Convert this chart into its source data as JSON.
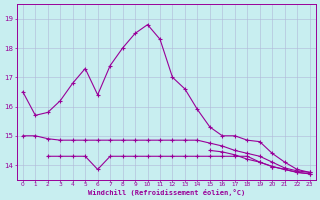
{
  "bg_color": "#c8eef0",
  "grid_color": "#b0b8d8",
  "line_color": "#990099",
  "xlabel": "Windchill (Refroidissement éolien,°C)",
  "ylabel_ticks": [
    14,
    15,
    16,
    17,
    18,
    19
  ],
  "ylim": [
    13.5,
    19.5
  ],
  "xlim": [
    -0.5,
    23.5
  ],
  "series1_x": [
    0,
    1,
    2,
    3,
    4,
    5,
    6,
    7,
    8,
    9,
    10,
    11,
    12,
    13,
    14,
    15,
    16,
    17,
    18,
    19,
    20,
    21,
    22,
    23
  ],
  "series1_y": [
    16.5,
    15.7,
    15.8,
    16.2,
    16.8,
    17.3,
    16.4,
    17.4,
    18.0,
    18.5,
    18.8,
    18.3,
    17.0,
    16.6,
    15.9,
    15.3,
    15.0,
    15.0,
    14.85,
    14.8,
    14.4,
    14.1,
    13.85,
    13.75
  ],
  "series2_x": [
    0,
    1,
    2,
    3,
    4,
    5,
    6,
    7,
    8,
    9,
    10,
    11,
    12,
    13,
    14,
    15,
    16,
    17,
    18,
    19,
    20,
    21,
    22,
    23
  ],
  "series2_y": [
    15.0,
    15.0,
    14.9,
    14.85,
    14.85,
    14.85,
    14.85,
    14.85,
    14.85,
    14.85,
    14.85,
    14.85,
    14.85,
    14.85,
    14.85,
    14.75,
    14.65,
    14.5,
    14.4,
    14.3,
    14.1,
    13.9,
    13.8,
    13.75
  ],
  "series3_x": [
    0,
    1,
    2,
    3,
    4,
    5,
    6,
    7,
    8,
    9,
    10,
    11,
    12,
    13,
    14,
    15,
    16,
    17,
    18,
    19,
    20,
    21,
    22,
    23
  ],
  "series3_y": [
    null,
    null,
    14.3,
    14.3,
    14.3,
    14.3,
    13.85,
    14.3,
    14.3,
    14.3,
    14.3,
    14.3,
    14.3,
    14.3,
    14.3,
    14.3,
    14.3,
    14.3,
    14.3,
    14.1,
    13.95,
    13.85,
    13.75,
    13.7
  ],
  "series4_x": [
    15,
    16,
    17,
    18,
    19,
    20,
    21,
    22,
    23
  ],
  "series4_y": [
    14.5,
    14.45,
    14.35,
    14.2,
    14.1,
    13.95,
    13.85,
    13.75,
    13.7
  ],
  "x_labels": [
    "0",
    "1",
    "2",
    "3",
    "4",
    "5",
    "6",
    "7",
    "8",
    "9",
    "10",
    "11",
    "12",
    "13",
    "14",
    "15",
    "16",
    "17",
    "18",
    "19",
    "20",
    "21",
    "22",
    "23"
  ]
}
